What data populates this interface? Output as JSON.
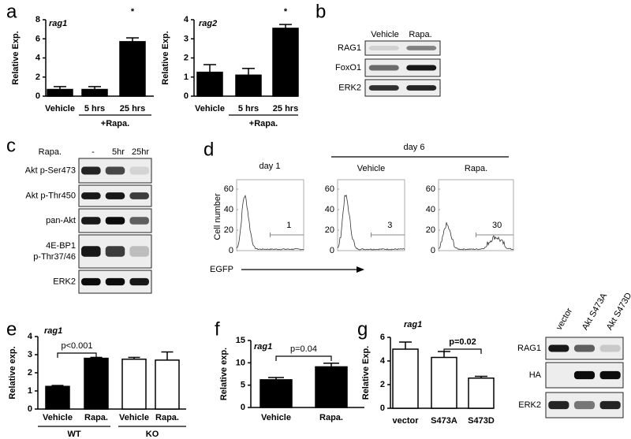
{
  "panel_labels": [
    "a",
    "b",
    "c",
    "d",
    "e",
    "f",
    "g"
  ],
  "chart_data": [
    {
      "type": "bar",
      "title": "rag1",
      "ylabel": "Relative Exp.",
      "categories": [
        "Vehicle",
        "5 hrs",
        "25 hrs"
      ],
      "values": [
        0.7,
        0.7,
        5.7
      ],
      "errors": [
        0.3,
        0.3,
        0.4
      ],
      "colors": [
        "#000000",
        "#000000",
        "#000000"
      ],
      "ylim": [
        0,
        8
      ],
      "yticks": [
        0,
        2,
        4,
        6,
        8
      ],
      "annotation": "*",
      "group_labels": [
        "+Rapa."
      ]
    },
    {
      "type": "bar",
      "title": "rag2",
      "ylabel": "Relative Exp.",
      "categories": [
        "Vehicle",
        "5 hrs",
        "25 hrs"
      ],
      "values": [
        1.25,
        1.1,
        3.55
      ],
      "errors": [
        0.4,
        0.35,
        0.2
      ],
      "colors": [
        "#000000",
        "#000000",
        "#000000"
      ],
      "ylim": [
        0,
        4
      ],
      "yticks": [
        0,
        1,
        2,
        3,
        4
      ],
      "annotation": "*",
      "group_labels": [
        "+Rapa."
      ]
    },
    {
      "type": "bar",
      "title": "rag1",
      "ylabel": "Relative exp.",
      "categories": [
        "Vehicle",
        "Rapa.",
        "Vehicle",
        "Rapa."
      ],
      "values": [
        1.25,
        2.8,
        2.75,
        2.7
      ],
      "errors": [
        0.05,
        0.05,
        0.1,
        0.45
      ],
      "colors": [
        "#000000",
        "#000000",
        "#ffffff",
        "#ffffff"
      ],
      "ylim": [
        0,
        4
      ],
      "yticks": [
        0,
        1,
        2,
        3,
        4
      ],
      "annotation": "p<0.001",
      "group_labels": [
        "WT",
        "KO"
      ]
    },
    {
      "type": "bar",
      "title": "rag1",
      "ylabel": "Relative exp.",
      "categories": [
        "Vehicle",
        "Rapa."
      ],
      "values": [
        6.2,
        9.1
      ],
      "errors": [
        0.5,
        0.8
      ],
      "colors": [
        "#000000",
        "#000000"
      ],
      "ylim": [
        0,
        15
      ],
      "yticks": [
        0,
        5,
        10,
        15
      ],
      "annotation": "p=0.04",
      "group_labels": []
    },
    {
      "type": "bar",
      "title": "rag1",
      "ylabel": "Relative Exp.",
      "categories": [
        "vector",
        "S473A",
        "S473D"
      ],
      "values": [
        5.0,
        4.3,
        2.55
      ],
      "errors": [
        0.6,
        0.5,
        0.15
      ],
      "colors": [
        "#ffffff",
        "#ffffff",
        "#ffffff"
      ],
      "ylim": [
        0,
        6
      ],
      "yticks": [
        0,
        2,
        4,
        6
      ],
      "annotation": "p=0.02",
      "group_labels": []
    }
  ],
  "blots": [
    {
      "treatment": null,
      "columns": [
        "Vehicle",
        "Rapa."
      ],
      "rows": [
        "RAG1",
        "FoxO1",
        "ERK2"
      ]
    },
    {
      "treatment": "Rapa.",
      "columns": [
        "-",
        "5hr",
        "25hr"
      ],
      "rows": [
        "Akt p-Ser473",
        "Akt p-Thr450",
        "pan-Akt",
        [
          "4E-BP1",
          "p-Thr37/46"
        ],
        "ERK2"
      ]
    },
    {
      "treatment": null,
      "columns": [
        "vector",
        "Akt S473A",
        "Akt S473D"
      ],
      "rows": [
        "RAG1",
        "HA",
        "ERK2"
      ]
    }
  ],
  "flow": {
    "group_label": "day 6",
    "ylabel": "Cell number",
    "xlabel": "EGFP",
    "yticks": [
      0,
      20,
      40,
      60
    ],
    "panels": [
      {
        "title": "day 1",
        "gate": 1
      },
      {
        "title": "Vehicle",
        "gate": 3
      },
      {
        "title": "Rapa.",
        "gate": 30
      }
    ]
  }
}
